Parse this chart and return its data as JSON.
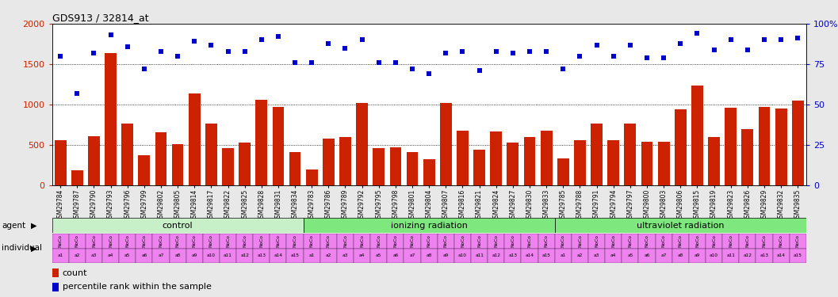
{
  "title": "GDS913 / 32814_at",
  "gsm_labels": [
    "GSM29784",
    "GSM29787",
    "GSM29790",
    "GSM29793",
    "GSM29796",
    "GSM29799",
    "GSM29802",
    "GSM29805",
    "GSM29814",
    "GSM29817",
    "GSM29822",
    "GSM29825",
    "GSM29828",
    "GSM29831",
    "GSM29834",
    "GSM29783",
    "GSM29786",
    "GSM29789",
    "GSM29792",
    "GSM29795",
    "GSM29798",
    "GSM29801",
    "GSM29804",
    "GSM29807",
    "GSM29816",
    "GSM29821",
    "GSM29824",
    "GSM29827",
    "GSM29830",
    "GSM29833",
    "GSM29785",
    "GSM29788",
    "GSM29791",
    "GSM29794",
    "GSM29797",
    "GSM29800",
    "GSM29803",
    "GSM29806",
    "GSM29815",
    "GSM29819",
    "GSM29823",
    "GSM29826",
    "GSM29829",
    "GSM29832",
    "GSM29835"
  ],
  "counts": [
    560,
    190,
    610,
    1640,
    770,
    380,
    660,
    510,
    1140,
    770,
    460,
    530,
    1060,
    970,
    410,
    200,
    580,
    600,
    1020,
    460,
    470,
    410,
    330,
    1020,
    680,
    440,
    670,
    530,
    600,
    680,
    340,
    560,
    770,
    560,
    770,
    540,
    540,
    940,
    1240,
    600,
    960,
    700,
    970,
    950,
    1050
  ],
  "percentiles": [
    80,
    57,
    82,
    93,
    86,
    72,
    83,
    80,
    89,
    87,
    83,
    83,
    90,
    92,
    76,
    76,
    88,
    85,
    90,
    76,
    76,
    72,
    69,
    82,
    83,
    71,
    83,
    82,
    83,
    83,
    72,
    80,
    87,
    80,
    87,
    79,
    79,
    88,
    94,
    84,
    90,
    84,
    90,
    90,
    91
  ],
  "agents": [
    "control",
    "ionizing radiation",
    "ultraviolet radiation"
  ],
  "agent_colors": [
    "#c8f0c8",
    "#7ee87e",
    "#7ee87e"
  ],
  "individual_color": "#ee82ee",
  "individual_labels_top": [
    "NoCo",
    "NoCo",
    "NoCo",
    "NoCo",
    "NoCo",
    "NoCo",
    "NoCo",
    "NoCo",
    "NoCo",
    "NoCo",
    "NoCo",
    "NoCo",
    "NoCo",
    "NoCo",
    "NoCo",
    "NoCo",
    "NoCo",
    "NoCo",
    "NoCo",
    "NoCo",
    "NoCo",
    "NoCo",
    "NoCo",
    "NoCo",
    "NoCo",
    "NoCo",
    "NoCo",
    "NoCo",
    "NoCo",
    "NoCo",
    "NoCo",
    "NoCo",
    "NoCo",
    "NoCo",
    "NoCo",
    "NoCo",
    "NoCo",
    "NoCo",
    "NoCo",
    "NoCo",
    "NoCo",
    "NoCo",
    "NoCo",
    "NoCo",
    "NoCo"
  ],
  "individual_labels_bot": [
    "a1",
    "a2",
    "a3",
    "a4",
    "a5",
    "a6",
    "a7",
    "a8",
    "a9",
    "a10",
    "a11",
    "a12",
    "a13",
    "a14",
    "a15",
    "a1",
    "a2",
    "a3",
    "a4",
    "a5",
    "a6",
    "a7",
    "a8",
    "a9",
    "a10",
    "a11",
    "a12",
    "a13",
    "a14",
    "a15",
    "a1",
    "a2",
    "a3",
    "a4",
    "a5",
    "a6",
    "a7",
    "a8",
    "a9",
    "a10",
    "a11",
    "a12",
    "a13",
    "a14",
    "a15"
  ],
  "bar_color": "#cc2200",
  "dot_color": "#0000cc",
  "ylim_left": [
    0,
    2000
  ],
  "ylim_right": [
    0,
    100
  ],
  "yticks_left": [
    0,
    500,
    1000,
    1500,
    2000
  ],
  "yticks_right": [
    0,
    25,
    50,
    75,
    100
  ],
  "yticklabels_right": [
    "0",
    "25",
    "50",
    "75",
    "100%"
  ],
  "bg_color": "#e8e8e8",
  "plot_bg": "#ffffff",
  "xtick_bg": "#d8d8d8"
}
